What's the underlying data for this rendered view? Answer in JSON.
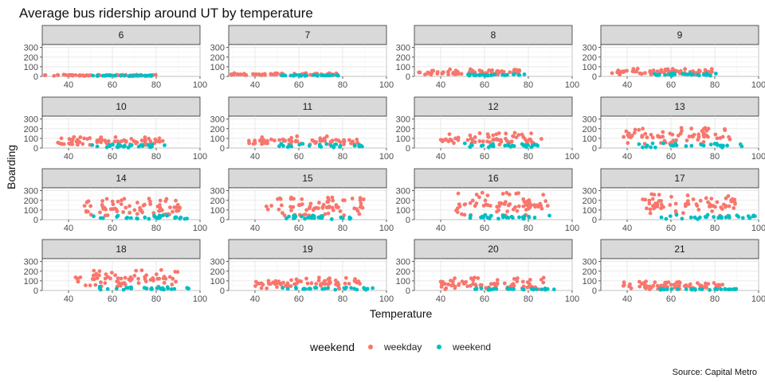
{
  "chart_data": {
    "type": "scatter",
    "title": "Average bus ridership around UT by temperature",
    "xlabel": "Temperature",
    "ylabel": "Boarding",
    "caption": "Source: Capital Metro",
    "facet_by": "hour",
    "facets": [
      "6",
      "7",
      "8",
      "9",
      "10",
      "11",
      "12",
      "13",
      "14",
      "15",
      "16",
      "17",
      "18",
      "19",
      "20",
      "21"
    ],
    "xlim": [
      28,
      100
    ],
    "ylim": [
      0,
      330
    ],
    "x_ticks": [
      40,
      60,
      80,
      100
    ],
    "y_ticks": [
      0,
      100,
      200,
      300
    ],
    "grid": true,
    "legend": {
      "title": "weekend",
      "position": "bottom",
      "entries": [
        {
          "label": "weekday",
          "color": "#F8766D"
        },
        {
          "label": "weekend",
          "color": "#00BFC4"
        }
      ]
    },
    "series": [
      {
        "name": "weekday",
        "color": "#F8766D",
        "facet_summary": [
          {
            "facet": "6",
            "x_range": [
              29,
              80
            ],
            "y_range": [
              5,
              20
            ]
          },
          {
            "facet": "7",
            "x_range": [
              29,
              78
            ],
            "y_range": [
              10,
              35
            ]
          },
          {
            "facet": "8",
            "x_range": [
              30,
              79
            ],
            "y_range": [
              15,
              75
            ]
          },
          {
            "facet": "9",
            "x_range": [
              33,
              80
            ],
            "y_range": [
              15,
              80
            ]
          },
          {
            "facet": "10",
            "x_range": [
              35,
              83
            ],
            "y_range": [
              30,
              120
            ]
          },
          {
            "facet": "11",
            "x_range": [
              37,
              87
            ],
            "y_range": [
              35,
              125
            ]
          },
          {
            "facet": "12",
            "x_range": [
              40,
              87
            ],
            "y_range": [
              30,
              160
            ]
          },
          {
            "facet": "13",
            "x_range": [
              38,
              87
            ],
            "y_range": [
              40,
              210
            ]
          },
          {
            "facet": "14",
            "x_range": [
              44,
              91
            ],
            "y_range": [
              40,
              220
            ]
          },
          {
            "facet": "15",
            "x_range": [
              45,
              90
            ],
            "y_range": [
              40,
              235
            ]
          },
          {
            "facet": "16",
            "x_range": [
              47,
              89
            ],
            "y_range": [
              40,
              290
            ]
          },
          {
            "facet": "17",
            "x_range": [
              47,
              91
            ],
            "y_range": [
              40,
              270
            ]
          },
          {
            "facet": "18",
            "x_range": [
              42,
              90
            ],
            "y_range": [
              40,
              220
            ]
          },
          {
            "facet": "19",
            "x_range": [
              40,
              88
            ],
            "y_range": [
              20,
              135
            ]
          },
          {
            "facet": "20",
            "x_range": [
              40,
              87
            ],
            "y_range": [
              10,
              140
            ]
          },
          {
            "facet": "21",
            "x_range": [
              37,
              84
            ],
            "y_range": [
              10,
              95
            ]
          }
        ]
      },
      {
        "name": "weekend",
        "color": "#00BFC4",
        "facet_summary": [
          {
            "facet": "6",
            "x_range": [
              50,
              78
            ],
            "y_range": [
              3,
              12
            ]
          },
          {
            "facet": "7",
            "x_range": [
              52,
              78
            ],
            "y_range": [
              5,
              15
            ]
          },
          {
            "facet": "8",
            "x_range": [
              52,
              80
            ],
            "y_range": [
              5,
              25
            ]
          },
          {
            "facet": "9",
            "x_range": [
              52,
              82
            ],
            "y_range": [
              5,
              35
            ]
          },
          {
            "facet": "10",
            "x_range": [
              50,
              84
            ],
            "y_range": [
              5,
              40
            ]
          },
          {
            "facet": "11",
            "x_range": [
              50,
              90
            ],
            "y_range": [
              5,
              45
            ]
          },
          {
            "facet": "12",
            "x_range": [
              50,
              88
            ],
            "y_range": [
              5,
              50
            ]
          },
          {
            "facet": "13",
            "x_range": [
              45,
              94
            ],
            "y_range": [
              5,
              50
            ]
          },
          {
            "facet": "14",
            "x_range": [
              50,
              95
            ],
            "y_range": [
              5,
              45
            ]
          },
          {
            "facet": "15",
            "x_range": [
              52,
              88
            ],
            "y_range": [
              5,
              45
            ]
          },
          {
            "facet": "16",
            "x_range": [
              52,
              95
            ],
            "y_range": [
              5,
              50
            ]
          },
          {
            "facet": "17",
            "x_range": [
              52,
              99
            ],
            "y_range": [
              5,
              50
            ]
          },
          {
            "facet": "18",
            "x_range": [
              52,
              97
            ],
            "y_range": [
              5,
              45
            ]
          },
          {
            "facet": "19",
            "x_range": [
              52,
              94
            ],
            "y_range": [
              5,
              35
            ]
          },
          {
            "facet": "20",
            "x_range": [
              55,
              93
            ],
            "y_range": [
              5,
              25
            ]
          },
          {
            "facet": "21",
            "x_range": [
              55,
              92
            ],
            "y_range": [
              5,
              20
            ]
          }
        ]
      }
    ]
  }
}
